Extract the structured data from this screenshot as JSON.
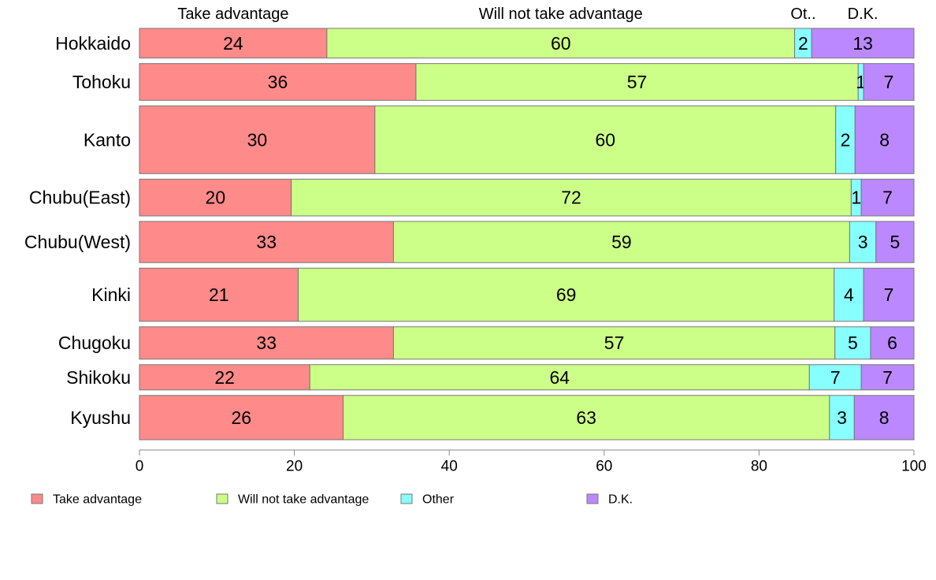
{
  "chart_data": {
    "type": "bar",
    "orientation": "horizontal",
    "stacked": true,
    "categories": [
      "Hokkaido",
      "Tohoku",
      "Kanto",
      "Chubu(East)",
      "Chubu(West)",
      "Kinki",
      "Chugoku",
      "Shikoku",
      "Kyushu"
    ],
    "row_weights": [
      0.67,
      0.83,
      1.53,
      0.83,
      0.93,
      1.2,
      0.73,
      0.57,
      1.0
    ],
    "series": [
      {
        "name": "Take advantage",
        "color": "#ff8a8a",
        "values": [
          24.2,
          35.7,
          30.4,
          19.6,
          32.8,
          20.5,
          32.8,
          22.0,
          26.3
        ],
        "labels": [
          "24",
          "36",
          "30",
          "20",
          "33",
          "21",
          "33",
          "22",
          "26"
        ]
      },
      {
        "name": "Will not take advantage",
        "color": "#ccff88",
        "values": [
          60.4,
          57.1,
          59.5,
          72.3,
          58.9,
          69.2,
          57.0,
          64.5,
          62.8
        ],
        "labels": [
          "60",
          "57",
          "60",
          "72",
          "59",
          "69",
          "57",
          "64",
          "63"
        ]
      },
      {
        "name": "Other",
        "color": "#88ffff",
        "values": [
          2.2,
          0.7,
          2.5,
          1.3,
          3.4,
          3.8,
          4.6,
          6.7,
          3.2
        ],
        "labels": [
          "2",
          "1",
          "2",
          "1",
          "3",
          "4",
          "5",
          "7",
          "3"
        ]
      },
      {
        "name": "D.K.",
        "color": "#bb88ff",
        "values": [
          13.2,
          6.5,
          7.6,
          6.8,
          4.9,
          6.5,
          5.6,
          6.8,
          7.7
        ],
        "labels": [
          "13",
          "7",
          "8",
          "7",
          "5",
          "7",
          "6",
          "7",
          "8"
        ]
      }
    ],
    "column_headers": [
      "Take advantage",
      "Will not take advantage",
      "Ot..",
      "D.K."
    ],
    "xlim": [
      0,
      100
    ],
    "xticks": [
      0,
      20,
      40,
      60,
      80,
      100
    ],
    "legend_position": "bottom",
    "grid": false
  }
}
